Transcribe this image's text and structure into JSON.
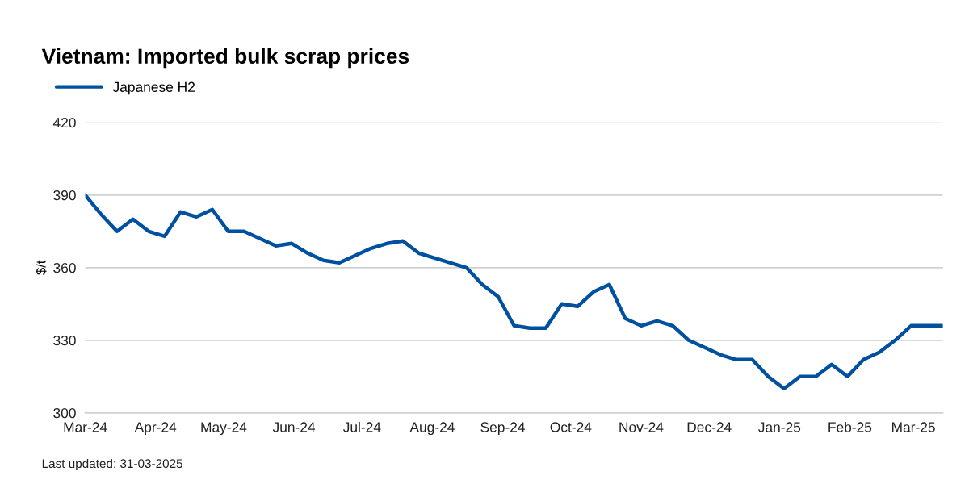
{
  "chart_data": {
    "type": "line",
    "title": "Vietnam: Imported bulk scrap prices",
    "ylabel": "$/t",
    "x": [
      "2024-03-01",
      "2024-03-08",
      "2024-03-15",
      "2024-03-22",
      "2024-03-29",
      "2024-04-05",
      "2024-04-12",
      "2024-04-19",
      "2024-04-26",
      "2024-05-03",
      "2024-05-10",
      "2024-05-17",
      "2024-05-24",
      "2024-05-31",
      "2024-06-07",
      "2024-06-14",
      "2024-06-21",
      "2024-06-28",
      "2024-07-05",
      "2024-07-12",
      "2024-07-19",
      "2024-07-26",
      "2024-08-02",
      "2024-08-09",
      "2024-08-16",
      "2024-08-23",
      "2024-08-30",
      "2024-09-06",
      "2024-09-13",
      "2024-09-20",
      "2024-09-27",
      "2024-10-04",
      "2024-10-11",
      "2024-10-18",
      "2024-10-25",
      "2024-11-01",
      "2024-11-08",
      "2024-11-15",
      "2024-11-22",
      "2024-11-29",
      "2024-12-06",
      "2024-12-13",
      "2024-12-20",
      "2024-12-27",
      "2025-01-03",
      "2025-01-10",
      "2025-01-17",
      "2025-01-24",
      "2025-01-31",
      "2025-02-07",
      "2025-02-14",
      "2025-02-21",
      "2025-02-28",
      "2025-03-07",
      "2025-03-14"
    ],
    "series": [
      {
        "name": "Japanese H2",
        "color": "#0050a0",
        "values": [
          390,
          382,
          375,
          380,
          375,
          373,
          383,
          381,
          384,
          375,
          375,
          372,
          369,
          370,
          366,
          363,
          362,
          365,
          368,
          370,
          371,
          366,
          364,
          362,
          360,
          353,
          348,
          336,
          335,
          335,
          345,
          344,
          350,
          353,
          339,
          336,
          338,
          336,
          330,
          327,
          324,
          322,
          322,
          315,
          310,
          315,
          315,
          320,
          315,
          322,
          325,
          330,
          336,
          336,
          336
        ]
      }
    ],
    "xlim": [
      "2024-03-01",
      "2025-03-14"
    ],
    "xticks": [
      {
        "value": "2024-03-01",
        "label": "Mar-24"
      },
      {
        "value": "2024-04-01",
        "label": "Apr-24"
      },
      {
        "value": "2024-05-01",
        "label": "May-24"
      },
      {
        "value": "2024-06-01",
        "label": "Jun-24"
      },
      {
        "value": "2024-07-01",
        "label": "Jul-24"
      },
      {
        "value": "2024-08-01",
        "label": "Aug-24"
      },
      {
        "value": "2024-09-01",
        "label": "Sep-24"
      },
      {
        "value": "2024-10-01",
        "label": "Oct-24"
      },
      {
        "value": "2024-11-01",
        "label": "Nov-24"
      },
      {
        "value": "2024-12-01",
        "label": "Dec-24"
      },
      {
        "value": "2025-01-01",
        "label": "Jan-25"
      },
      {
        "value": "2025-02-01",
        "label": "Feb-25"
      },
      {
        "value": "2025-03-01",
        "label": "Mar-25"
      }
    ],
    "ylim": [
      300,
      420
    ],
    "yticks": [
      300,
      330,
      360,
      390,
      420
    ],
    "grid": "y",
    "legend": "top left",
    "marker": "none",
    "line_style": "solid",
    "annotations": [
      "Last updated: 31-03-2025"
    ]
  }
}
